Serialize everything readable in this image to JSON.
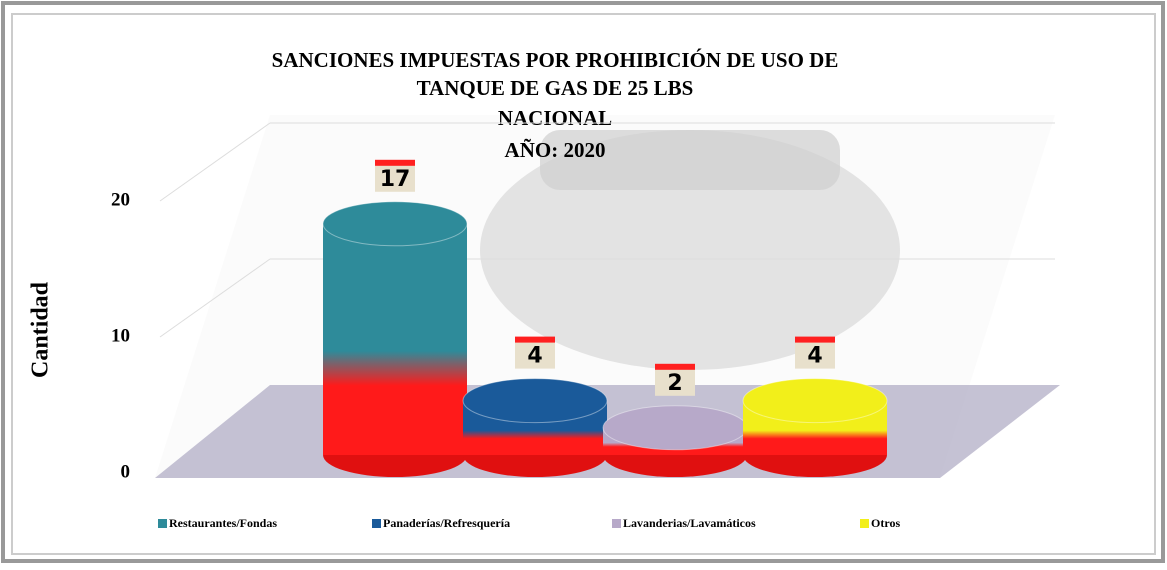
{
  "chart_data": {
    "type": "bar",
    "title": [
      "SANCIONES IMPUESTAS POR PROHIBICIÓN DE USO DE",
      "TANQUE DE GAS DE 25 LBS"
    ],
    "subtitle": [
      "NACIONAL",
      "AÑO: 2020"
    ],
    "y_label": "Cantidad",
    "categories": [
      "Restaurantes/Fondas",
      "Panaderías/Refresquería",
      "Lavanderias/Lavamáticos",
      "Otros"
    ],
    "values": [
      17,
      4,
      2,
      4
    ],
    "colors": [
      "#2e8b9a",
      "#1a5a9a",
      "#b7a9c9",
      "#f2ef1a"
    ],
    "ylim": [
      0,
      25
    ],
    "yticks": [
      0,
      10,
      20
    ],
    "grid": true,
    "legend": "bottom"
  }
}
